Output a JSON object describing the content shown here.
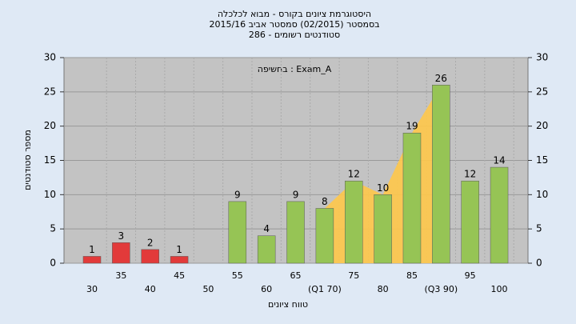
{
  "chart_data": {
    "type": "bar",
    "title": "היסטוגרמת ציונים בקורס - מבוא לכלכלה",
    "subtitle": "בסמסטר  (02/2015)  סמסטר אביב 2015/16",
    "subtitle2": "סטודנטים רשומים - 286",
    "annotation": "בחשיפה : Exam_A",
    "x_label": "טווח ציונים",
    "y_label": "מספר סטודנטים",
    "categories": [
      "30",
      "35",
      "40",
      "45",
      "50",
      "55",
      "60",
      "65",
      "(Q1 70)",
      "75",
      "80",
      "85",
      "(Q3 90)",
      "95",
      "100"
    ],
    "values": [
      1,
      3,
      2,
      1,
      null,
      9,
      4,
      9,
      8,
      12,
      10,
      19,
      26,
      12,
      14
    ],
    "colors": [
      "#e23a3a",
      "#e23a3a",
      "#e23a3a",
      "#e23a3a",
      "#e23a3a",
      "#96c455",
      "#96c455",
      "#96c455",
      "#96c455",
      "#96c455",
      "#96c455",
      "#96c455",
      "#96c455",
      "#96c455",
      "#96c455"
    ],
    "ylim": [
      0,
      30
    ],
    "yticks": [
      0,
      5,
      10,
      15,
      20,
      25,
      30
    ],
    "y2lim": [
      0,
      30
    ],
    "y2ticks": [
      0,
      5,
      10,
      15,
      20,
      25,
      30
    ],
    "grid": true
  }
}
